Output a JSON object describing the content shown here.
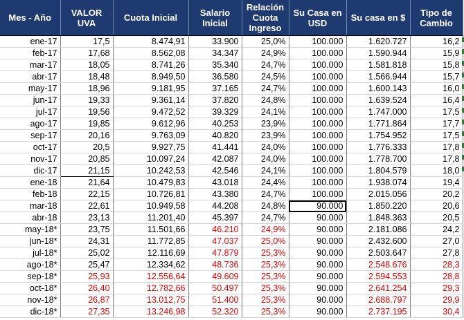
{
  "headers": {
    "mes": "Mes - Año",
    "uva": "VALOR UVA",
    "cuota": "Cuota Inicial",
    "salario": "Salario Inicial",
    "relacion": "Relación Cuota Ingreso",
    "usd": "Su Casa en USD",
    "pesos": "Su casa en $",
    "tc": "Tipo de Cambio"
  },
  "rows": [
    {
      "mes": "ene-17",
      "uva": "17,5",
      "cuota": "8.474,91",
      "salario": "33.900",
      "relacion": "25,0%",
      "usd": "100.000",
      "pesos": "1.620.727",
      "tc": "16,2"
    },
    {
      "mes": "feb-17",
      "uva": "17,68",
      "cuota": "8.562,08",
      "salario": "34.347",
      "relacion": "24,9%",
      "usd": "100.000",
      "pesos": "1.590.944",
      "tc": "15,9"
    },
    {
      "mes": "mar-17",
      "uva": "18,05",
      "cuota": "8.741,26",
      "salario": "35.340",
      "relacion": "24,7%",
      "usd": "100.000",
      "pesos": "1.581.818",
      "tc": "15,8"
    },
    {
      "mes": "abr-17",
      "uva": "18,48",
      "cuota": "8.949,50",
      "salario": "36.580",
      "relacion": "24,5%",
      "usd": "100.000",
      "pesos": "1.566.944",
      "tc": "15,7"
    },
    {
      "mes": "may-17",
      "uva": "18,96",
      "cuota": "9.181,95",
      "salario": "37.165",
      "relacion": "24,7%",
      "usd": "100.000",
      "pesos": "1.600.143",
      "tc": "16,0"
    },
    {
      "mes": "jun-17",
      "uva": "19,33",
      "cuota": "9.361,14",
      "salario": "37.820",
      "relacion": "24,8%",
      "usd": "100.000",
      "pesos": "1.639.524",
      "tc": "16,4"
    },
    {
      "mes": "jul-17",
      "uva": "19,56",
      "cuota": "9.472,52",
      "salario": "39.329",
      "relacion": "24,1%",
      "usd": "100.000",
      "pesos": "1.747.000",
      "tc": "17,5"
    },
    {
      "mes": "ago-17",
      "uva": "19,85",
      "cuota": "9.612,96",
      "salario": "40.253",
      "relacion": "23,9%",
      "usd": "100.000",
      "pesos": "1.771.864",
      "tc": "17,7"
    },
    {
      "mes": "sep-17",
      "uva": "20,16",
      "cuota": "9.763,09",
      "salario": "40.820",
      "relacion": "23,9%",
      "usd": "100.000",
      "pesos": "1.754.952",
      "tc": "17,5"
    },
    {
      "mes": "oct-17",
      "uva": "20,5",
      "cuota": "9.927,75",
      "salario": "41.441",
      "relacion": "24,0%",
      "usd": "100.000",
      "pesos": "1.776.333",
      "tc": "17,8"
    },
    {
      "mes": "nov-17",
      "uva": "20,85",
      "cuota": "10.097,24",
      "salario": "42.087",
      "relacion": "24,0%",
      "usd": "100.000",
      "pesos": "1.778.700",
      "tc": "17,8"
    },
    {
      "mes": "dic-17",
      "uva": "21,15",
      "cuota": "10.242,53",
      "salario": "42.546",
      "relacion": "24,1%",
      "usd": "100.000",
      "pesos": "1.804.579",
      "tc": "18,0"
    },
    {
      "mes": "ene-18",
      "uva": "21,64",
      "cuota": "10.479,83",
      "salario": "43.018",
      "relacion": "24,4%",
      "usd": "100.000",
      "pesos": "1.938.074",
      "tc": "19,4"
    },
    {
      "mes": "feb-18",
      "uva": "22,15",
      "cuota": "10.726,81",
      "salario": "43.380",
      "relacion": "24,7%",
      "usd": "100.000",
      "pesos": "2.015.056",
      "tc": "20,2"
    },
    {
      "mes": "mar-18",
      "uva": "22,61",
      "cuota": "10.949,58",
      "salario": "44.208",
      "relacion": "24,8%",
      "usd": "90.000",
      "pesos": "1.850.220",
      "tc": "20,6"
    },
    {
      "mes": "abr-18",
      "uva": "23,13",
      "cuota": "11.201,40",
      "salario": "45.397",
      "relacion": "24,7%",
      "usd": "90.000",
      "pesos": "1.848.363",
      "tc": "20,5"
    },
    {
      "mes": "may-18*",
      "uva": "23,75",
      "cuota": "11.501,66",
      "salario": "46.210",
      "relacion": "24,9%",
      "usd": "90.000",
      "pesos": "2.181.086",
      "tc": "24,2"
    },
    {
      "mes": "jun-18*",
      "uva": "24,31",
      "cuota": "11.772,85",
      "salario": "47.037",
      "relacion": "25,0%",
      "usd": "90.000",
      "pesos": "2.432.600",
      "tc": "27,0"
    },
    {
      "mes": "jul-18*",
      "uva": "25,02",
      "cuota": "12.116,69",
      "salario": "47.879",
      "relacion": "25,3%",
      "usd": "90.000",
      "pesos": "2.503.647",
      "tc": "27,8"
    },
    {
      "mes": "ago-18*",
      "uva": "25,47",
      "cuota": "12.334,62",
      "salario": "48.736",
      "relacion": "25,3%",
      "usd": "90.000",
      "pesos": "2.548.676",
      "tc": "28,3"
    },
    {
      "mes": "sep-18*",
      "uva": "25,93",
      "cuota": "12.556,64",
      "salario": "49.609",
      "relacion": "25,3%",
      "usd": "90.000",
      "pesos": "2.594.553",
      "tc": "28,8"
    },
    {
      "mes": "oct-18*",
      "uva": "26,40",
      "cuota": "12.782,66",
      "salario": "50.497",
      "relacion": "25,3%",
      "usd": "90.000",
      "pesos": "2.641.254",
      "tc": "29,3"
    },
    {
      "mes": "nov-18*",
      "uva": "26,87",
      "cuota": "13.012,75",
      "salario": "51.400",
      "relacion": "25,3%",
      "usd": "90.000",
      "pesos": "2.688.797",
      "tc": "29,9"
    },
    {
      "mes": "dic-18*",
      "uva": "27,35",
      "cuota": "13.246,98",
      "salario": "52.320",
      "relacion": "25,3%",
      "usd": "90.000",
      "pesos": "2.737.195",
      "tc": "30,4"
    }
  ],
  "colors": {
    "header_bg": "#1f3a70",
    "header_text": "#ffffff",
    "highlight_text": "#e00000",
    "indicator": "#2e7d32"
  },
  "red_cells": {
    "16": [
      "salario",
      "relacion"
    ],
    "17": [
      "salario",
      "relacion"
    ],
    "18": [
      "salario",
      "relacion"
    ],
    "19": [
      "salario",
      "relacion",
      "pesos",
      "tc"
    ],
    "20": [
      "uva",
      "cuota",
      "salario",
      "relacion",
      "pesos",
      "tc"
    ],
    "21": [
      "uva",
      "cuota",
      "salario",
      "relacion",
      "pesos",
      "tc"
    ],
    "22": [
      "uva",
      "cuota",
      "salario",
      "relacion",
      "pesos",
      "tc"
    ],
    "23": [
      "uva",
      "cuota",
      "salario",
      "relacion",
      "pesos",
      "tc"
    ]
  },
  "selected_cell": {
    "row": 14,
    "col": "usd"
  },
  "indicator_icon": "green-triangle-icon",
  "indicator_rows": [
    0,
    1,
    2,
    3,
    4,
    5,
    6,
    7,
    8,
    9,
    10,
    11
  ]
}
